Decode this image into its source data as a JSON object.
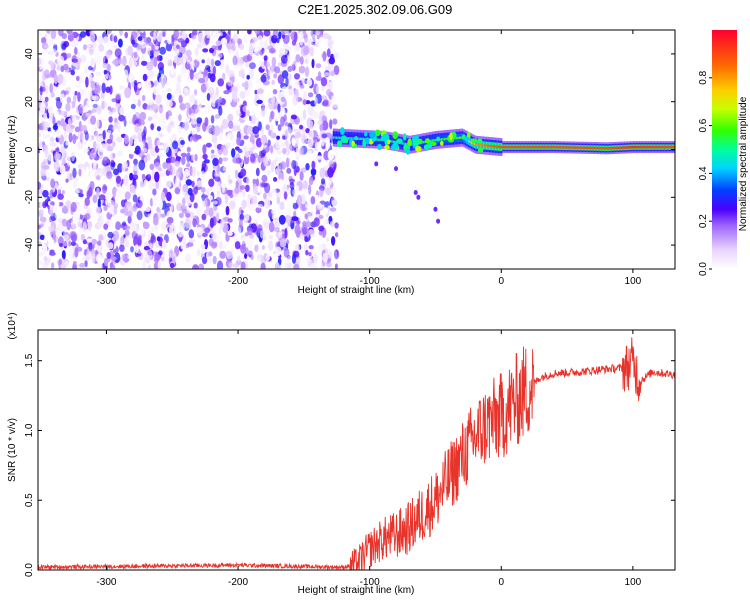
{
  "title": "C2E1.2025.302.09.06.G09",
  "chart_data": [
    {
      "type": "heatmap",
      "title": "C2E1.2025.302.09.06.G09",
      "xlabel": "Height of straight line (km)",
      "ylabel": "Frequency (Hz)",
      "xlim": [
        -352,
        132
      ],
      "ylim": [
        -50,
        50
      ],
      "xticks": [
        -300,
        -200,
        -100,
        0,
        100
      ],
      "yticks": [
        -40,
        -20,
        0,
        20,
        40
      ],
      "colorbar": {
        "label": "Normalized spectral amplitude",
        "range": [
          0,
          1
        ],
        "ticks": [
          "0.0",
          "0.2",
          "0.4",
          "0.6",
          "0.8"
        ]
      },
      "description_series": [
        {
          "name": "noise region",
          "x": [
            -352,
            -125
          ],
          "freq_range": [
            -50,
            50
          ],
          "amplitude": 0.15
        },
        {
          "name": "signal ridge",
          "x": [
            -128,
            -90,
            -70,
            -50,
            -30,
            -20,
            0,
            40,
            80,
            100,
            132
          ],
          "freq": [
            5,
            4,
            2,
            4,
            5,
            2,
            1,
            1,
            0.5,
            1,
            1
          ],
          "amplitude": [
            0.45,
            0.5,
            0.45,
            0.55,
            0.6,
            0.8,
            0.9,
            0.9,
            0.9,
            0.95,
            0.9
          ]
        }
      ]
    },
    {
      "type": "line",
      "xlabel": "Height of straight line (km)",
      "ylabel": "SNR (10 * v/v)",
      "yscale_label": "(x10⁴)",
      "xlim": [
        -352,
        132
      ],
      "ylim": [
        0,
        1.72
      ],
      "xticks": [
        -300,
        -200,
        -100,
        0,
        100
      ],
      "yticks": [
        "0.0",
        "0.5",
        "1.0",
        "1.5"
      ],
      "series": [
        {
          "name": "SNR",
          "color": "#e8332a",
          "x": [
            -352,
            -300,
            -250,
            -200,
            -150,
            -120,
            -110,
            -100,
            -90,
            -80,
            -70,
            -60,
            -50,
            -40,
            -30,
            -20,
            -10,
            0,
            10,
            20,
            30,
            40,
            60,
            80,
            95,
            100,
            105,
            115,
            132
          ],
          "y": [
            0.02,
            0.025,
            0.03,
            0.035,
            0.025,
            0.02,
            0.04,
            0.15,
            0.22,
            0.25,
            0.3,
            0.4,
            0.5,
            0.65,
            0.8,
            0.95,
            1.05,
            1.1,
            1.2,
            1.3,
            1.38,
            1.41,
            1.42,
            1.44,
            1.45,
            1.5,
            1.35,
            1.42,
            1.4
          ]
        }
      ]
    }
  ]
}
